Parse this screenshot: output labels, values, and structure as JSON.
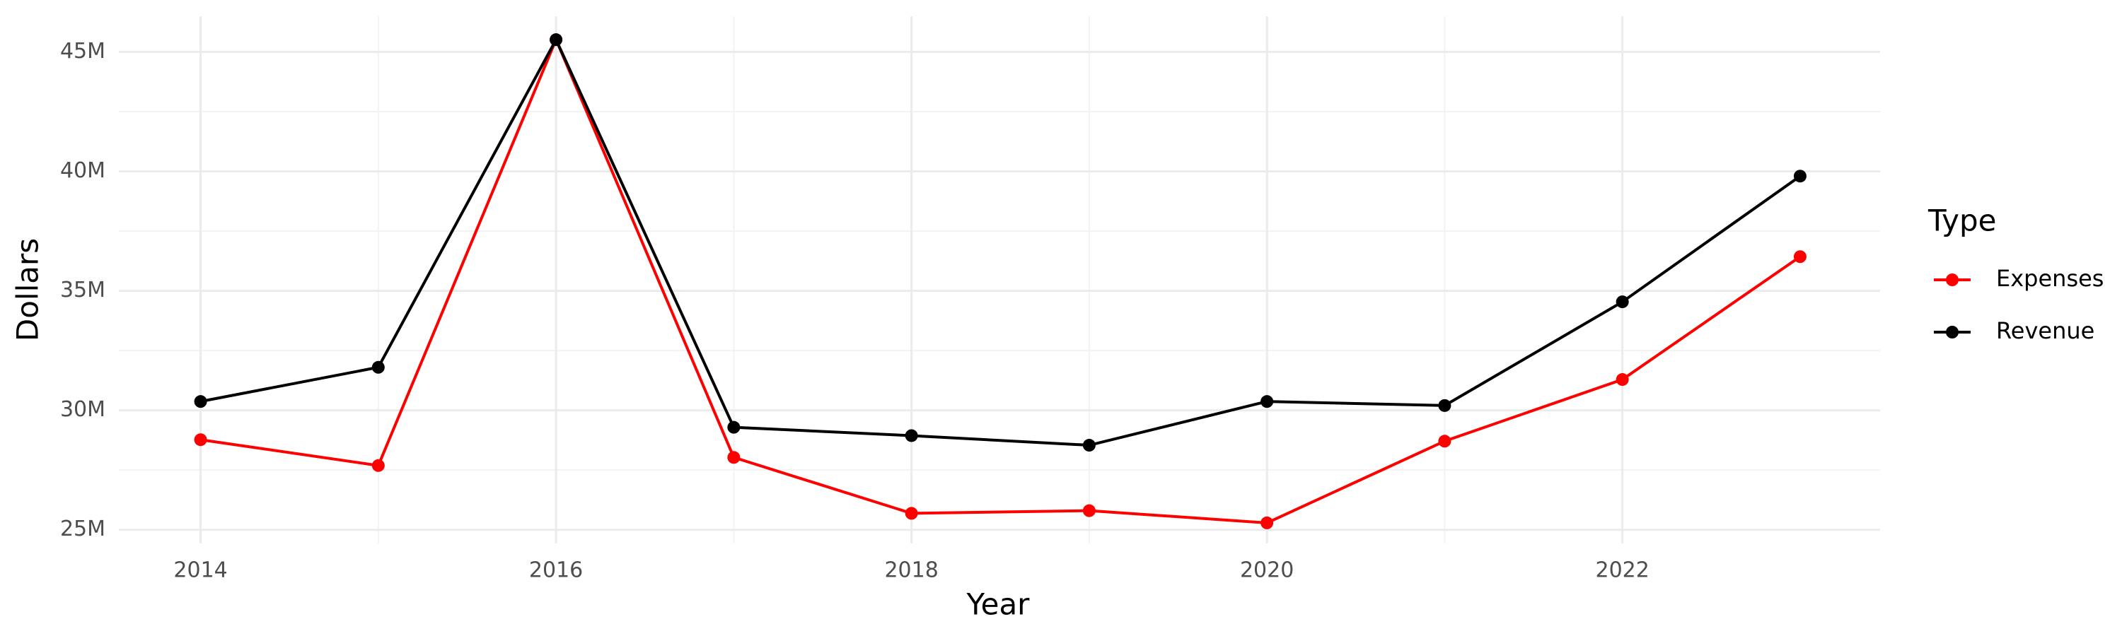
{
  "chart_data": {
    "type": "line",
    "x_label": "Year",
    "y_label": "Dollars",
    "legend_title": "Type",
    "legend_position": "right",
    "x": [
      2014,
      2015,
      2016,
      2017,
      2018,
      2019,
      2020,
      2021,
      2022,
      2023
    ],
    "series": [
      {
        "name": "Expenses",
        "color": "#ff0000",
        "values": [
          28770000,
          27690000,
          45510000,
          28030000,
          25690000,
          25800000,
          25290000,
          28710000,
          31290000,
          36430000
        ]
      },
      {
        "name": "Revenue",
        "color": "#000000",
        "values": [
          30370000,
          31800000,
          45510000,
          29290000,
          28940000,
          28540000,
          30370000,
          30200000,
          34540000,
          39800000
        ]
      }
    ],
    "xlim": [
      2013.54,
      2023.45
    ],
    "xticks": [
      2014,
      2016,
      2018,
      2020,
      2022
    ],
    "ylim": [
      24430000,
      46490000
    ],
    "yticks": [
      {
        "value": 25000000,
        "label": "25M"
      },
      {
        "value": 30000000,
        "label": "30M"
      },
      {
        "value": 35000000,
        "label": "35M"
      },
      {
        "value": 40000000,
        "label": "40M"
      },
      {
        "value": 45000000,
        "label": "45M"
      }
    ],
    "grid": true
  }
}
